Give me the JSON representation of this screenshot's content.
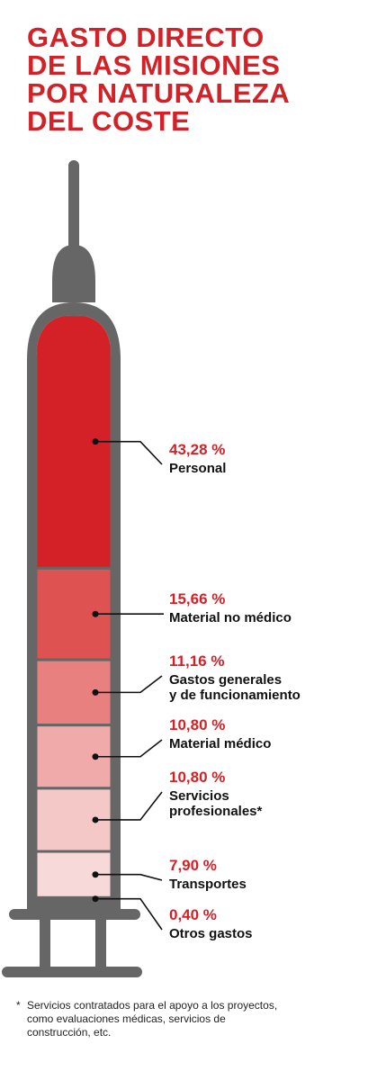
{
  "title_lines": [
    "GASTO DIRECTO",
    "DE LAS MISIONES",
    "POR NATURALEZA",
    "DEL COSTE"
  ],
  "colors": {
    "accent": "#d42127",
    "syringe": "#666666",
    "segments": [
      "#d42127",
      "#de5252",
      "#e88080",
      "#f0aaaa",
      "#f5c8c8",
      "#f7d9d9",
      "#fbeaea"
    ]
  },
  "chart_data": {
    "type": "bar",
    "orientation": "vertical-stacked",
    "title": "GASTO DIRECTO DE LAS MISIONES POR NATURALEZA DEL COSTE",
    "categories": [
      "Personal",
      "Material no médico",
      "Gastos generales y de funcionamiento",
      "Material médico",
      "Servicios profesionales*",
      "Transportes",
      "Otros gastos"
    ],
    "values": [
      43.28,
      15.66,
      11.16,
      10.8,
      10.8,
      7.9,
      0.4
    ],
    "unit": "%",
    "value_labels": [
      "43,28 %",
      "15,66 %",
      "11,16 %",
      "10,80 %",
      "10,80 %",
      "7,90 %",
      "0,40 %"
    ],
    "label_lines": [
      [
        "Personal"
      ],
      [
        "Material no médico"
      ],
      [
        "Gastos generales",
        "y de funcionamiento"
      ],
      [
        "Material médico"
      ],
      [
        "Servicios",
        "profesionales*"
      ],
      [
        "Transportes"
      ],
      [
        "Otros gastos"
      ]
    ]
  },
  "footnote": {
    "marker": "*",
    "text": "Servicios contratados para el apoyo a los proyectos, como evaluaciones médicas, servicios de construcción, etc."
  }
}
